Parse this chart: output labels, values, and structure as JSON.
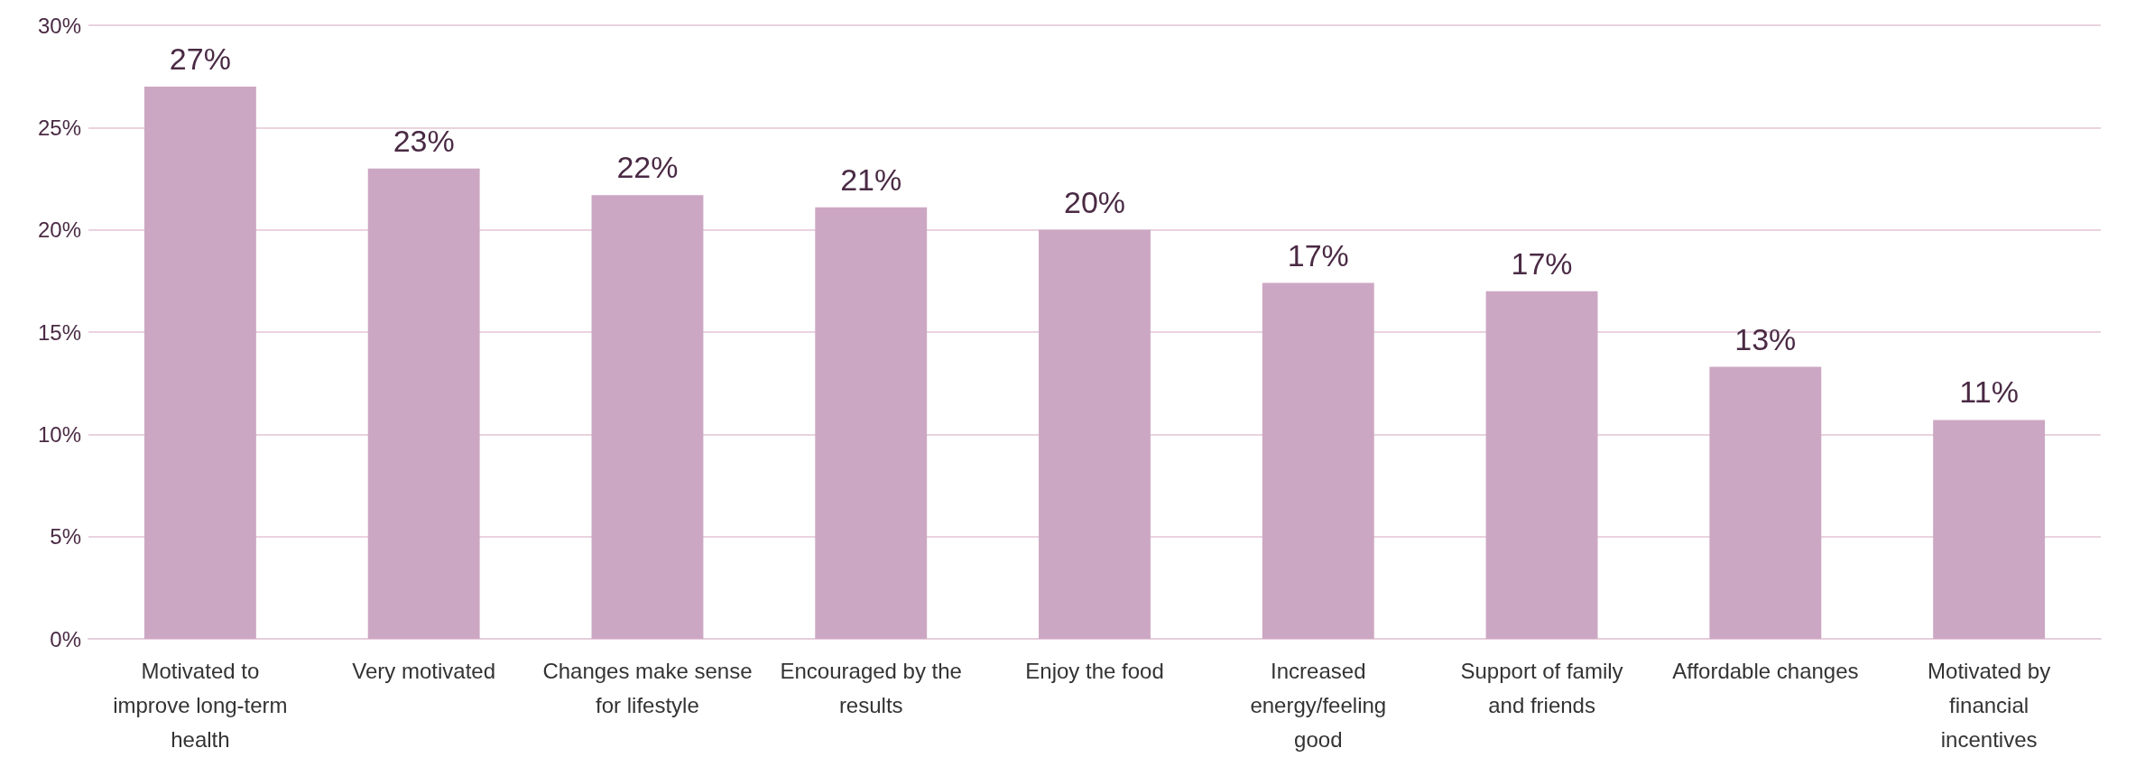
{
  "chart_data": {
    "type": "bar",
    "categories": [
      "Motivated to improve long-term health",
      "Very motivated",
      "Changes make sense for lifestyle",
      "Encouraged by the results",
      "Enjoy the food",
      "Increased energy/feeling good",
      "Support of family and friends",
      "Affordable changes",
      "Motivated by financial incentives"
    ],
    "values": [
      27,
      23,
      21.7,
      21.1,
      20.0,
      17.4,
      17.0,
      13.3,
      10.7
    ],
    "value_labels": [
      "27%",
      "23%",
      "22%",
      "21%",
      "20%",
      "17%",
      "17%",
      "13%",
      "11%"
    ],
    "color": "#cca7c3",
    "ylim": [
      0,
      30
    ],
    "yticks": [
      {
        "value": 0,
        "label": "0%"
      },
      {
        "value": 5,
        "label": "5%"
      },
      {
        "value": 10,
        "label": "10%"
      },
      {
        "value": 15,
        "label": "15%"
      },
      {
        "value": 20,
        "label": "20%"
      },
      {
        "value": 25,
        "label": "25%"
      },
      {
        "value": 30,
        "label": "30%"
      }
    ],
    "grid": true
  }
}
